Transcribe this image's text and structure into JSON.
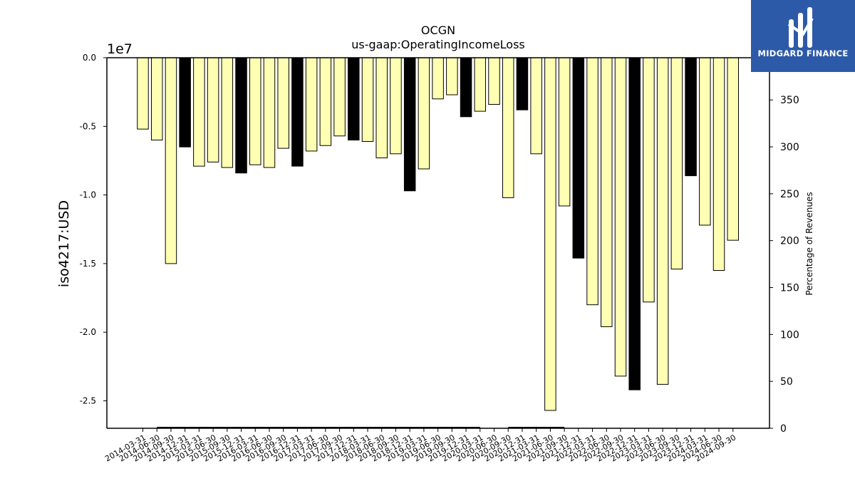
{
  "chart_data": {
    "type": "bar",
    "title": "OCGN",
    "subtitle": "us-gaap:OperatingIncomeLoss",
    "ylabel": "iso4217:USD",
    "y2label": "Percentage of Revenues",
    "y_offset_label": "1e7",
    "ylim": [
      -27000000,
      0
    ],
    "y2lim": [
      0,
      395
    ],
    "yticks": [
      "0.0",
      "-0.5",
      "-1.0",
      "-1.5",
      "-2.0",
      "-2.5"
    ],
    "yticks_values": [
      0,
      -5000000,
      -10000000,
      -15000000,
      -20000000,
      -25000000
    ],
    "y2ticks": [
      "0",
      "50",
      "100",
      "150",
      "200",
      "250",
      "300",
      "350"
    ],
    "y2ticks_values": [
      0,
      50,
      100,
      150,
      200,
      250,
      300,
      350
    ],
    "categories": [
      "2014-03-31",
      "2014-06-30",
      "2014-09-30",
      "2014-12-31",
      "2015-03-31",
      "2015-06-30",
      "2015-09-30",
      "2015-12-31",
      "2016-03-31",
      "2016-06-30",
      "2016-09-30",
      "2016-12-31",
      "2017-03-31",
      "2017-06-30",
      "2017-09-30",
      "2017-12-31",
      "2018-03-31",
      "2018-06-30",
      "2018-09-30",
      "2018-12-31",
      "2019-03-31",
      "2019-06-30",
      "2019-09-30",
      "2019-12-31",
      "2020-03-31",
      "2020-06-30",
      "2020-09-30",
      "2020-12-31",
      "2021-03-31",
      "2021-06-30",
      "2021-09-30",
      "2021-12-31",
      "2022-03-31",
      "2022-06-30",
      "2022-09-30",
      "2022-12-31",
      "2023-03-31",
      "2023-06-30",
      "2023-09-30",
      "2023-12-31",
      "2024-03-31",
      "2024-06-30",
      "2024-09-30"
    ],
    "values": [
      -5200000,
      -6000000,
      -15000000,
      -6500000,
      -7900000,
      -7600000,
      -8000000,
      -8400000,
      -7800000,
      -8000000,
      -6600000,
      -7900000,
      -6800000,
      -6400000,
      -5700000,
      -6000000,
      -6100000,
      -7300000,
      -7000000,
      -9700000,
      -8100000,
      -3000000,
      -2700000,
      -4300000,
      -3900000,
      -3400000,
      -10200000,
      -3800000,
      -7000000,
      -25700000,
      -10800000,
      -14600000,
      -18000000,
      -19600000,
      -23200000,
      -24200000,
      -17800000,
      -23800000,
      -15400000,
      -8600000,
      -12200000,
      -15500000,
      -13300000
    ],
    "highlight": [
      false,
      false,
      false,
      true,
      false,
      false,
      false,
      true,
      false,
      false,
      false,
      true,
      false,
      false,
      false,
      true,
      false,
      false,
      false,
      true,
      false,
      false,
      false,
      true,
      false,
      false,
      false,
      true,
      false,
      false,
      false,
      true,
      false,
      false,
      false,
      true,
      false,
      false,
      false,
      true,
      false,
      false,
      false
    ],
    "pct_revenue_line": [
      {
        "from": "2014-06-30",
        "to": "2020-03-31",
        "value": 0
      },
      {
        "from": "2020-09-30",
        "to": "2021-09-30",
        "value": 0
      }
    ],
    "colors": {
      "bar": "#ffffb3",
      "highlight_bar": "#000000",
      "edge": "#000000"
    },
    "grid": false,
    "legend": "none"
  },
  "logo": {
    "text": "MIDGARD FINANCE",
    "background": "#2d5aa8"
  }
}
